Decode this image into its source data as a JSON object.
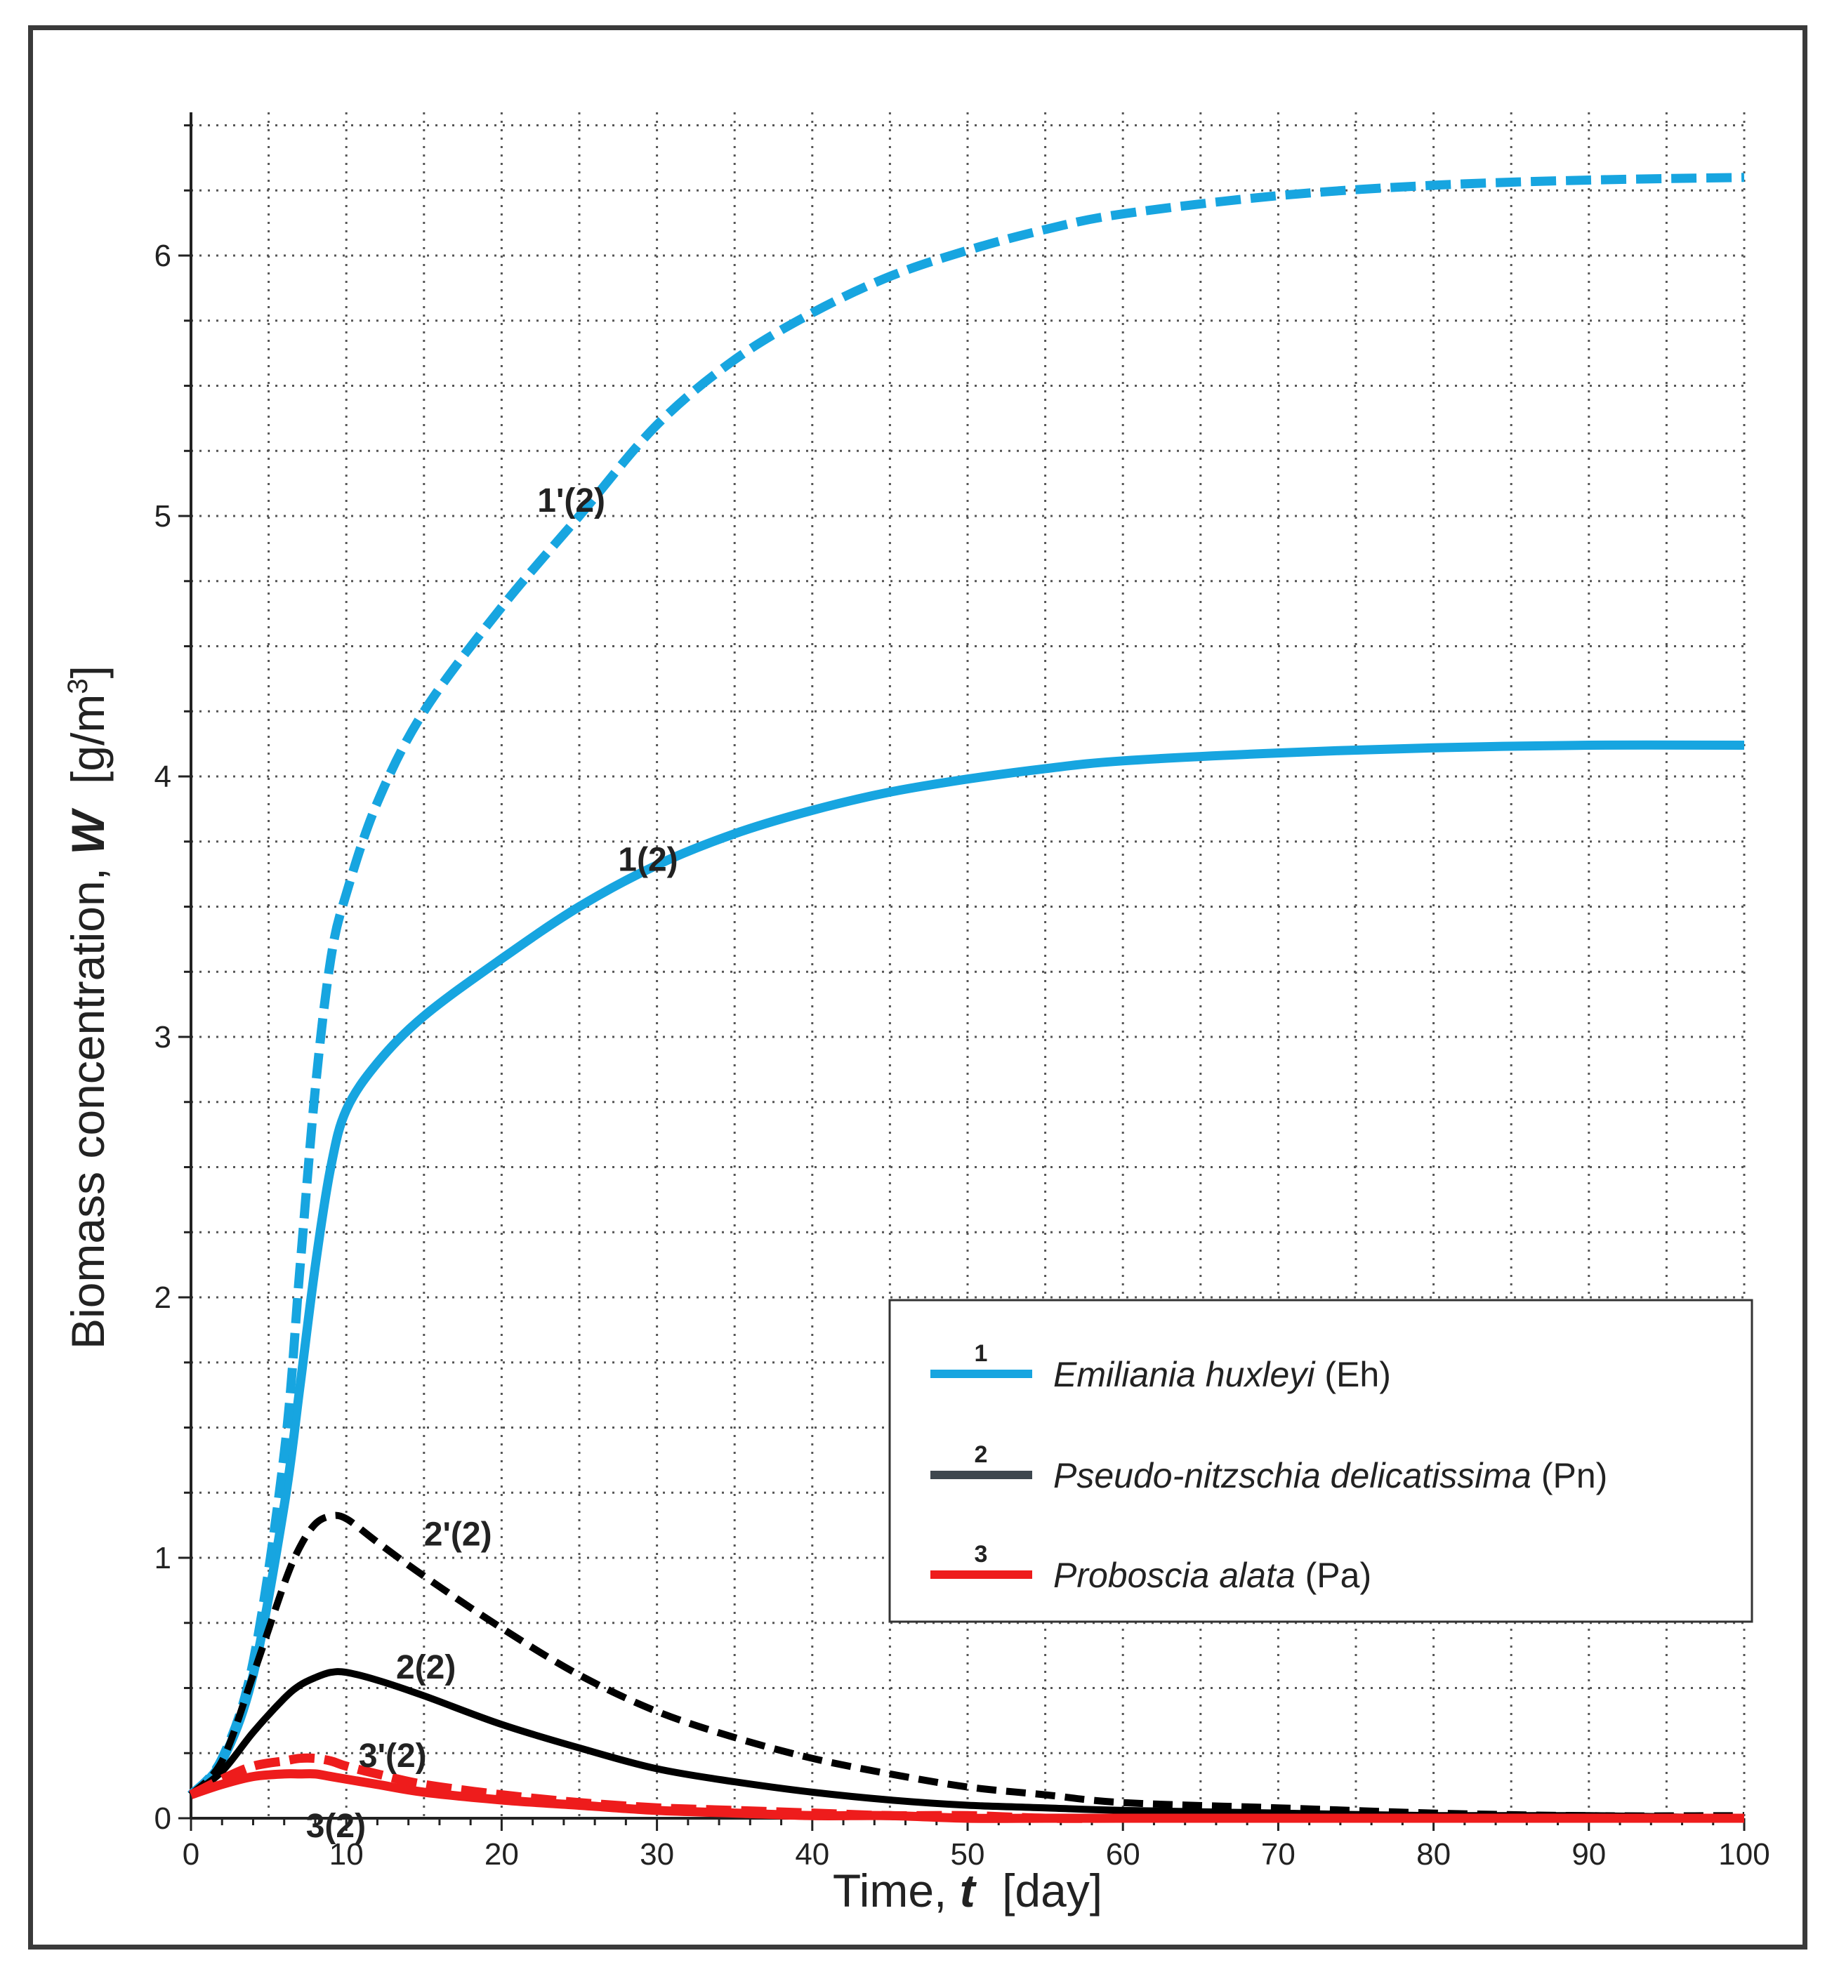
{
  "chart_data": {
    "type": "line",
    "xlabel": "Time,",
    "xlabel_var": "t",
    "xlabel_unit": "[day]",
    "ylabel": "Biomass concentration,",
    "ylabel_var": "W",
    "ylabel_unit": "[g/m",
    "ylabel_unit_sup": "3",
    "ylabel_unit_end": "]",
    "xlim": [
      0,
      100
    ],
    "ylim": [
      0,
      6.55
    ],
    "xticks": [
      0,
      10,
      20,
      30,
      40,
      50,
      60,
      70,
      80,
      90,
      100
    ],
    "yticks": [
      0,
      1,
      2,
      3,
      4,
      5,
      6
    ],
    "grid": true,
    "grid_x_step": 5,
    "grid_y_step": 0.25,
    "x": [
      0,
      2,
      4,
      6,
      7,
      8,
      9,
      10,
      12,
      15,
      20,
      25,
      30,
      35,
      40,
      45,
      50,
      55,
      60,
      70,
      80,
      90,
      100
    ],
    "series": [
      {
        "id": "s1",
        "name": "1(2)",
        "legend_num": "1",
        "species": "Emiliania huxleyi",
        "abbr": "(Eh)",
        "color": "#17a5e0",
        "dash": false,
        "in_legend": true,
        "values": [
          0.09,
          0.22,
          0.55,
          1.2,
          1.65,
          2.12,
          2.5,
          2.72,
          2.9,
          3.08,
          3.3,
          3.5,
          3.66,
          3.78,
          3.87,
          3.94,
          3.99,
          4.03,
          4.06,
          4.09,
          4.11,
          4.12,
          4.12
        ]
      },
      {
        "id": "s1p",
        "name": "1'(2)",
        "color": "#17a5e0",
        "dash": true,
        "in_legend": false,
        "values": [
          0.09,
          0.23,
          0.6,
          1.4,
          2.1,
          2.8,
          3.3,
          3.55,
          3.9,
          4.25,
          4.65,
          5.0,
          5.35,
          5.6,
          5.78,
          5.92,
          6.02,
          6.1,
          6.16,
          6.23,
          6.27,
          6.29,
          6.3
        ]
      },
      {
        "id": "s2",
        "name": "2(2)",
        "legend_num": "2",
        "species": "Pseudo-nitzschia delicatissima",
        "abbr": "(Pn)",
        "color": "#000000",
        "legend_color": "#3e474f",
        "dash": false,
        "in_legend": true,
        "values": [
          0.09,
          0.18,
          0.33,
          0.46,
          0.51,
          0.54,
          0.56,
          0.56,
          0.53,
          0.47,
          0.36,
          0.27,
          0.19,
          0.14,
          0.1,
          0.07,
          0.05,
          0.04,
          0.03,
          0.02,
          0.01,
          0.01,
          0.0
        ]
      },
      {
        "id": "s2p",
        "name": "2'(2)",
        "color": "#000000",
        "dash": true,
        "in_legend": false,
        "values": [
          0.09,
          0.22,
          0.55,
          0.9,
          1.04,
          1.13,
          1.16,
          1.15,
          1.06,
          0.93,
          0.73,
          0.55,
          0.41,
          0.31,
          0.23,
          0.17,
          0.12,
          0.09,
          0.06,
          0.04,
          0.02,
          0.01,
          0.01
        ]
      },
      {
        "id": "s3",
        "name": "3(2)",
        "legend_num": "3",
        "species": "Proboscia alata",
        "abbr": "(Pa)",
        "color": "#ee1c1c",
        "dash": false,
        "in_legend": true,
        "values": [
          0.09,
          0.13,
          0.16,
          0.17,
          0.17,
          0.17,
          0.16,
          0.15,
          0.13,
          0.1,
          0.07,
          0.05,
          0.03,
          0.02,
          0.01,
          0.01,
          0.0,
          0.0,
          0.0,
          0.0,
          0.0,
          0.0,
          0.0
        ]
      },
      {
        "id": "s3p",
        "name": "3'(2)",
        "color": "#ee1c1c",
        "dash": true,
        "in_legend": false,
        "values": [
          0.09,
          0.15,
          0.2,
          0.22,
          0.23,
          0.23,
          0.22,
          0.2,
          0.17,
          0.13,
          0.09,
          0.06,
          0.04,
          0.03,
          0.02,
          0.01,
          0.01,
          0.0,
          0.0,
          0.0,
          0.0,
          0.0,
          0.0
        ]
      }
    ],
    "annotations": [
      {
        "text": "1'(2)",
        "x": 22.3,
        "y": 5.06
      },
      {
        "text": "1(2)",
        "x": 27.5,
        "y": 3.68
      },
      {
        "text": "2'(2)",
        "x": 15.0,
        "y": 1.09
      },
      {
        "text": "2(2)",
        "x": 13.2,
        "y": 0.58
      },
      {
        "text": "3'(2)",
        "x": 10.8,
        "y": 0.24
      },
      {
        "text": "3(2)",
        "x": 7.4,
        "y": -0.03
      }
    ],
    "legend_position": "lower-right"
  }
}
